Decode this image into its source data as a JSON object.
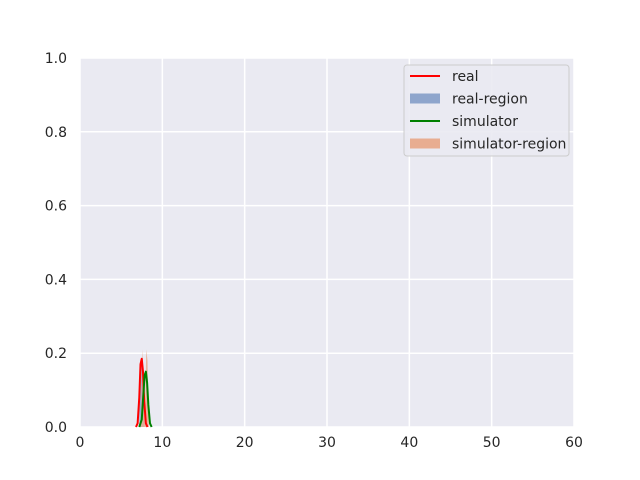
{
  "chart_data": {
    "type": "line",
    "title": "",
    "xlabel": "",
    "ylabel": "",
    "xlim": [
      0,
      60
    ],
    "ylim": [
      0,
      1.0
    ],
    "xticks": [
      0,
      10,
      20,
      30,
      40,
      50,
      60
    ],
    "yticks": [
      0.0,
      0.2,
      0.4,
      0.6,
      0.8,
      1.0
    ],
    "xtick_labels": [
      "0",
      "10",
      "20",
      "30",
      "40",
      "50",
      "60"
    ],
    "ytick_labels": [
      "0.0",
      "0.2",
      "0.4",
      "0.6",
      "0.8",
      "1.0"
    ],
    "grid": true,
    "background": "#eaeaf2",
    "legend_position": "top-right",
    "legend": [
      {
        "label": "real",
        "kind": "line",
        "color": "#ff0000"
      },
      {
        "label": "real-region",
        "kind": "patch",
        "color": "#8ea5cc"
      },
      {
        "label": "simulator",
        "kind": "line",
        "color": "#008000"
      },
      {
        "label": "simulator-region",
        "kind": "patch",
        "color": "#e8ad91"
      }
    ],
    "series": [
      {
        "name": "real",
        "kind": "line",
        "color": "#ff0000",
        "x": [
          6.8,
          7.0,
          7.2,
          7.35,
          7.5,
          7.65,
          7.8,
          8.0,
          8.2
        ],
        "y": [
          0.0,
          0.01,
          0.08,
          0.17,
          0.185,
          0.15,
          0.07,
          0.01,
          0.0
        ]
      },
      {
        "name": "simulator",
        "kind": "line",
        "color": "#008000",
        "x": [
          7.2,
          7.5,
          7.7,
          7.85,
          8.0,
          8.15,
          8.3,
          8.5,
          8.7
        ],
        "y": [
          0.0,
          0.02,
          0.09,
          0.14,
          0.15,
          0.12,
          0.06,
          0.01,
          0.0
        ]
      },
      {
        "name": "real-region",
        "kind": "area",
        "color": "#8ea5cc",
        "x": [
          7.2,
          7.35,
          7.5,
          7.65,
          7.8
        ],
        "y": [
          0.05,
          0.15,
          0.17,
          0.13,
          0.05
        ]
      },
      {
        "name": "simulator-region",
        "kind": "area",
        "color": "#e8ad91",
        "x": [
          7.4,
          7.55,
          7.7,
          7.9,
          8.05,
          8.2,
          8.35
        ],
        "y": [
          0.0,
          0.21,
          0.15,
          0.05,
          0.21,
          0.18,
          0.0
        ]
      }
    ]
  }
}
